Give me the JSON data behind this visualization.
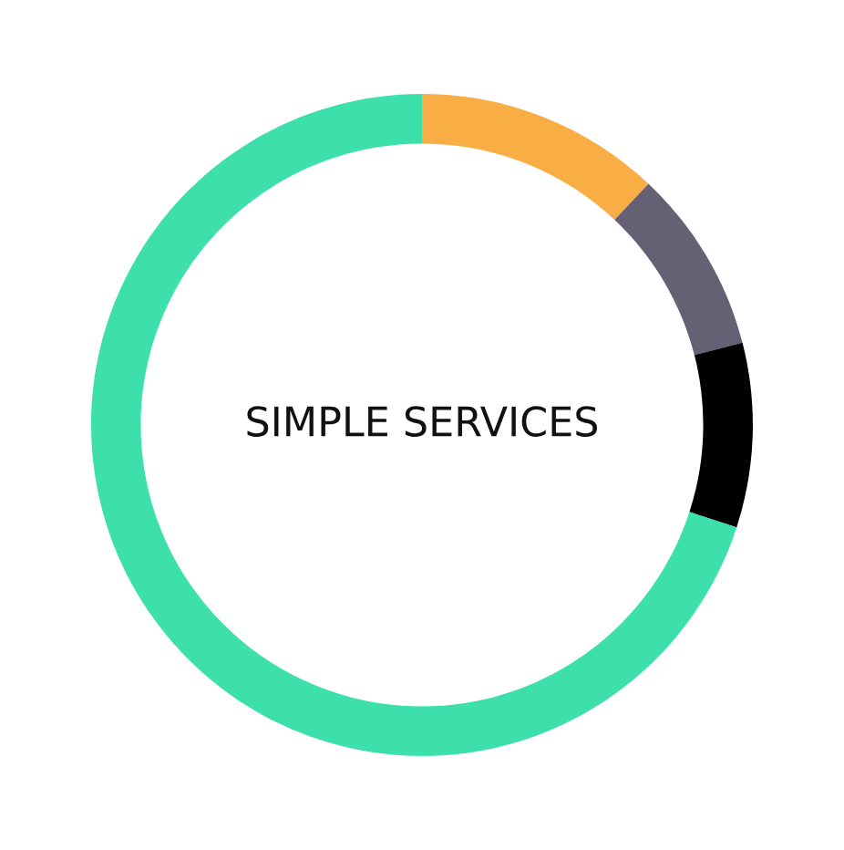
{
  "chart_data": {
    "type": "donut",
    "title": "SIMPLE SERVICES",
    "categories": [
      null,
      null,
      null,
      null
    ],
    "values": [
      12,
      9,
      9,
      70
    ],
    "colors": [
      "#f9ae45",
      "#666075",
      "#000000",
      "#3ddfab"
    ]
  }
}
